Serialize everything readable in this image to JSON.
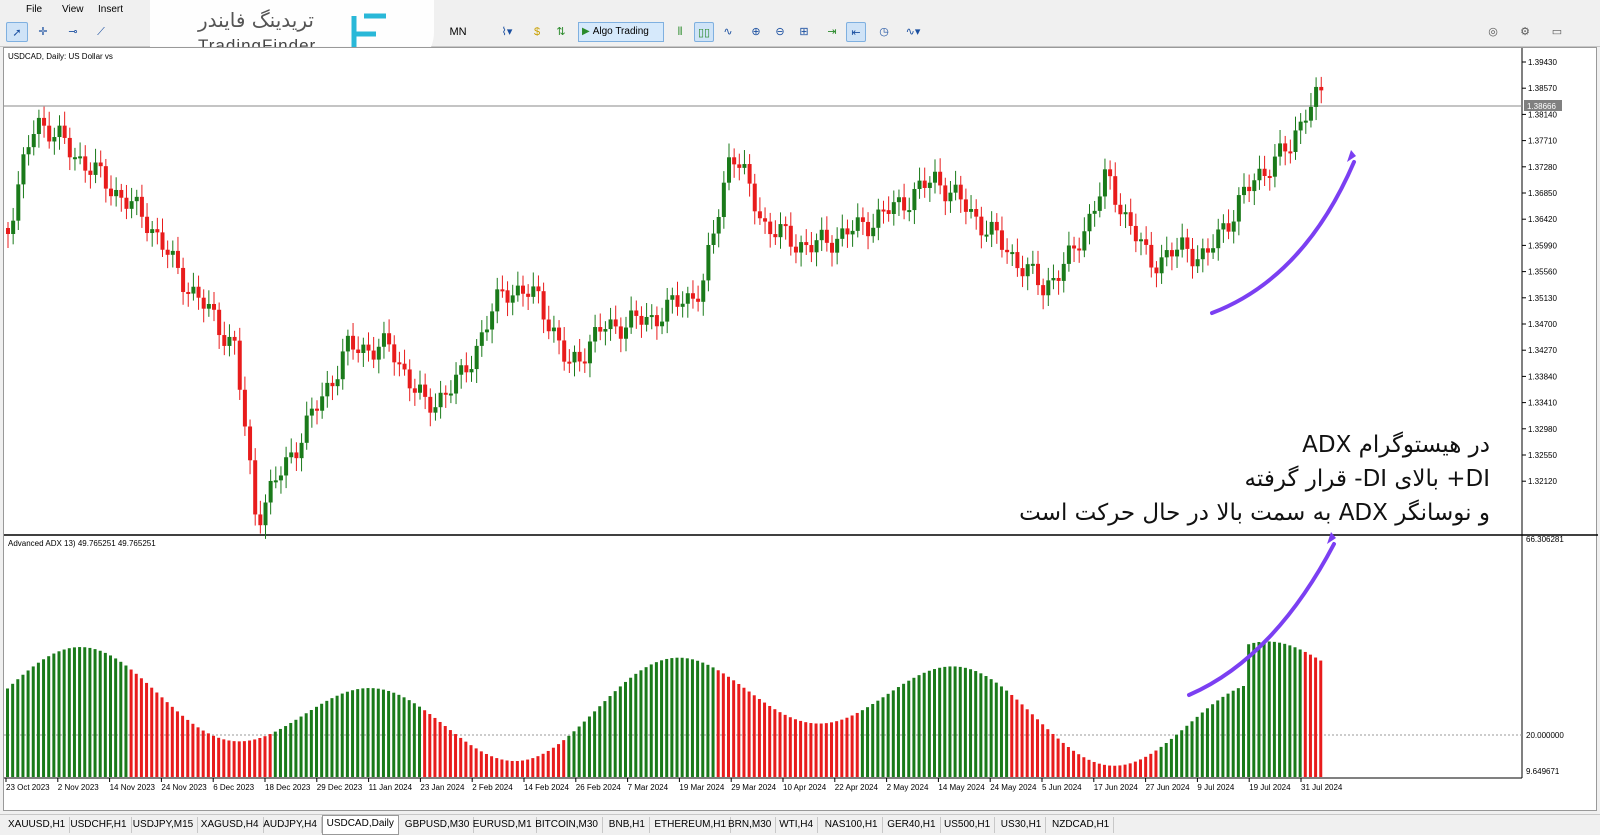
{
  "menu": {
    "file": "File",
    "view": "View",
    "insert": "Insert"
  },
  "toolbar": {
    "mn": "MN",
    "algo": "Algo Trading"
  },
  "logo": {
    "fa": "تریدینگ فایندر",
    "en": "TradingFinder"
  },
  "chart": {
    "symbol_info": "USDCAD, Daily:  US Dollar vs",
    "indicator_info": "Advanced ADX 13) 49.765251 49.765251",
    "current_price": "1.38666",
    "price_ticks": [
      "1.39430",
      "1.38570",
      "1.38140",
      "1.37710",
      "1.37280",
      "1.36850",
      "1.36420",
      "1.35990",
      "1.35560",
      "1.35130",
      "1.34700",
      "1.34270",
      "1.33840",
      "1.33410",
      "1.32980",
      "1.32550",
      "1.32120"
    ],
    "adx_ticks": [
      "66.306281",
      "20.000000",
      "9.649671"
    ],
    "date_ticks": [
      "23 Oct 2023",
      "2 Nov 2023",
      "14 Nov 2023",
      "24 Nov 2023",
      "6 Dec 2023",
      "18 Dec 2023",
      "29 Dec 2023",
      "11 Jan 2024",
      "23 Jan 2024",
      "2 Feb 2024",
      "14 Feb 2024",
      "26 Feb 2024",
      "7 Mar 2024",
      "19 Mar 2024",
      "29 Mar 2024",
      "10 Apr 2024",
      "22 Apr 2024",
      "2 May 2024",
      "14 May 2024",
      "24 May 2024",
      "5 Jun 2024",
      "17 Jun 2024",
      "27 Jun 2024",
      "9 Jul 2024",
      "19 Jul 2024",
      "31 Jul 2024"
    ],
    "colors": {
      "bull": "#1a7a1a",
      "bear": "#e81c1c",
      "arrow": "#7b3ff2"
    }
  },
  "annotation": {
    "line1": "در هیستوگرام ADX",
    "line2": "DI+ بالای DI- قرار گرفته",
    "line3": "و نوسانگر ADX به سمت بالا در حال حرکت است"
  },
  "tabs": [
    "XAUUSD,H1",
    "USDCHF,H1",
    "USDJPY,M15",
    "XAGUSD,H4",
    "AUDJPY,H4",
    "USDCAD,Daily",
    "GBPUSD,M30",
    "EURUSD,M1",
    "BITCOIN,M30",
    "BNB,H1",
    "ETHEREUM,H1",
    "BRN,M30",
    "WTI,H4",
    "NAS100,H1",
    "GER40,H1",
    "US500,H1",
    "US30,H1",
    "NZDCAD,H1"
  ],
  "active_tab": "USDCAD,Daily"
}
